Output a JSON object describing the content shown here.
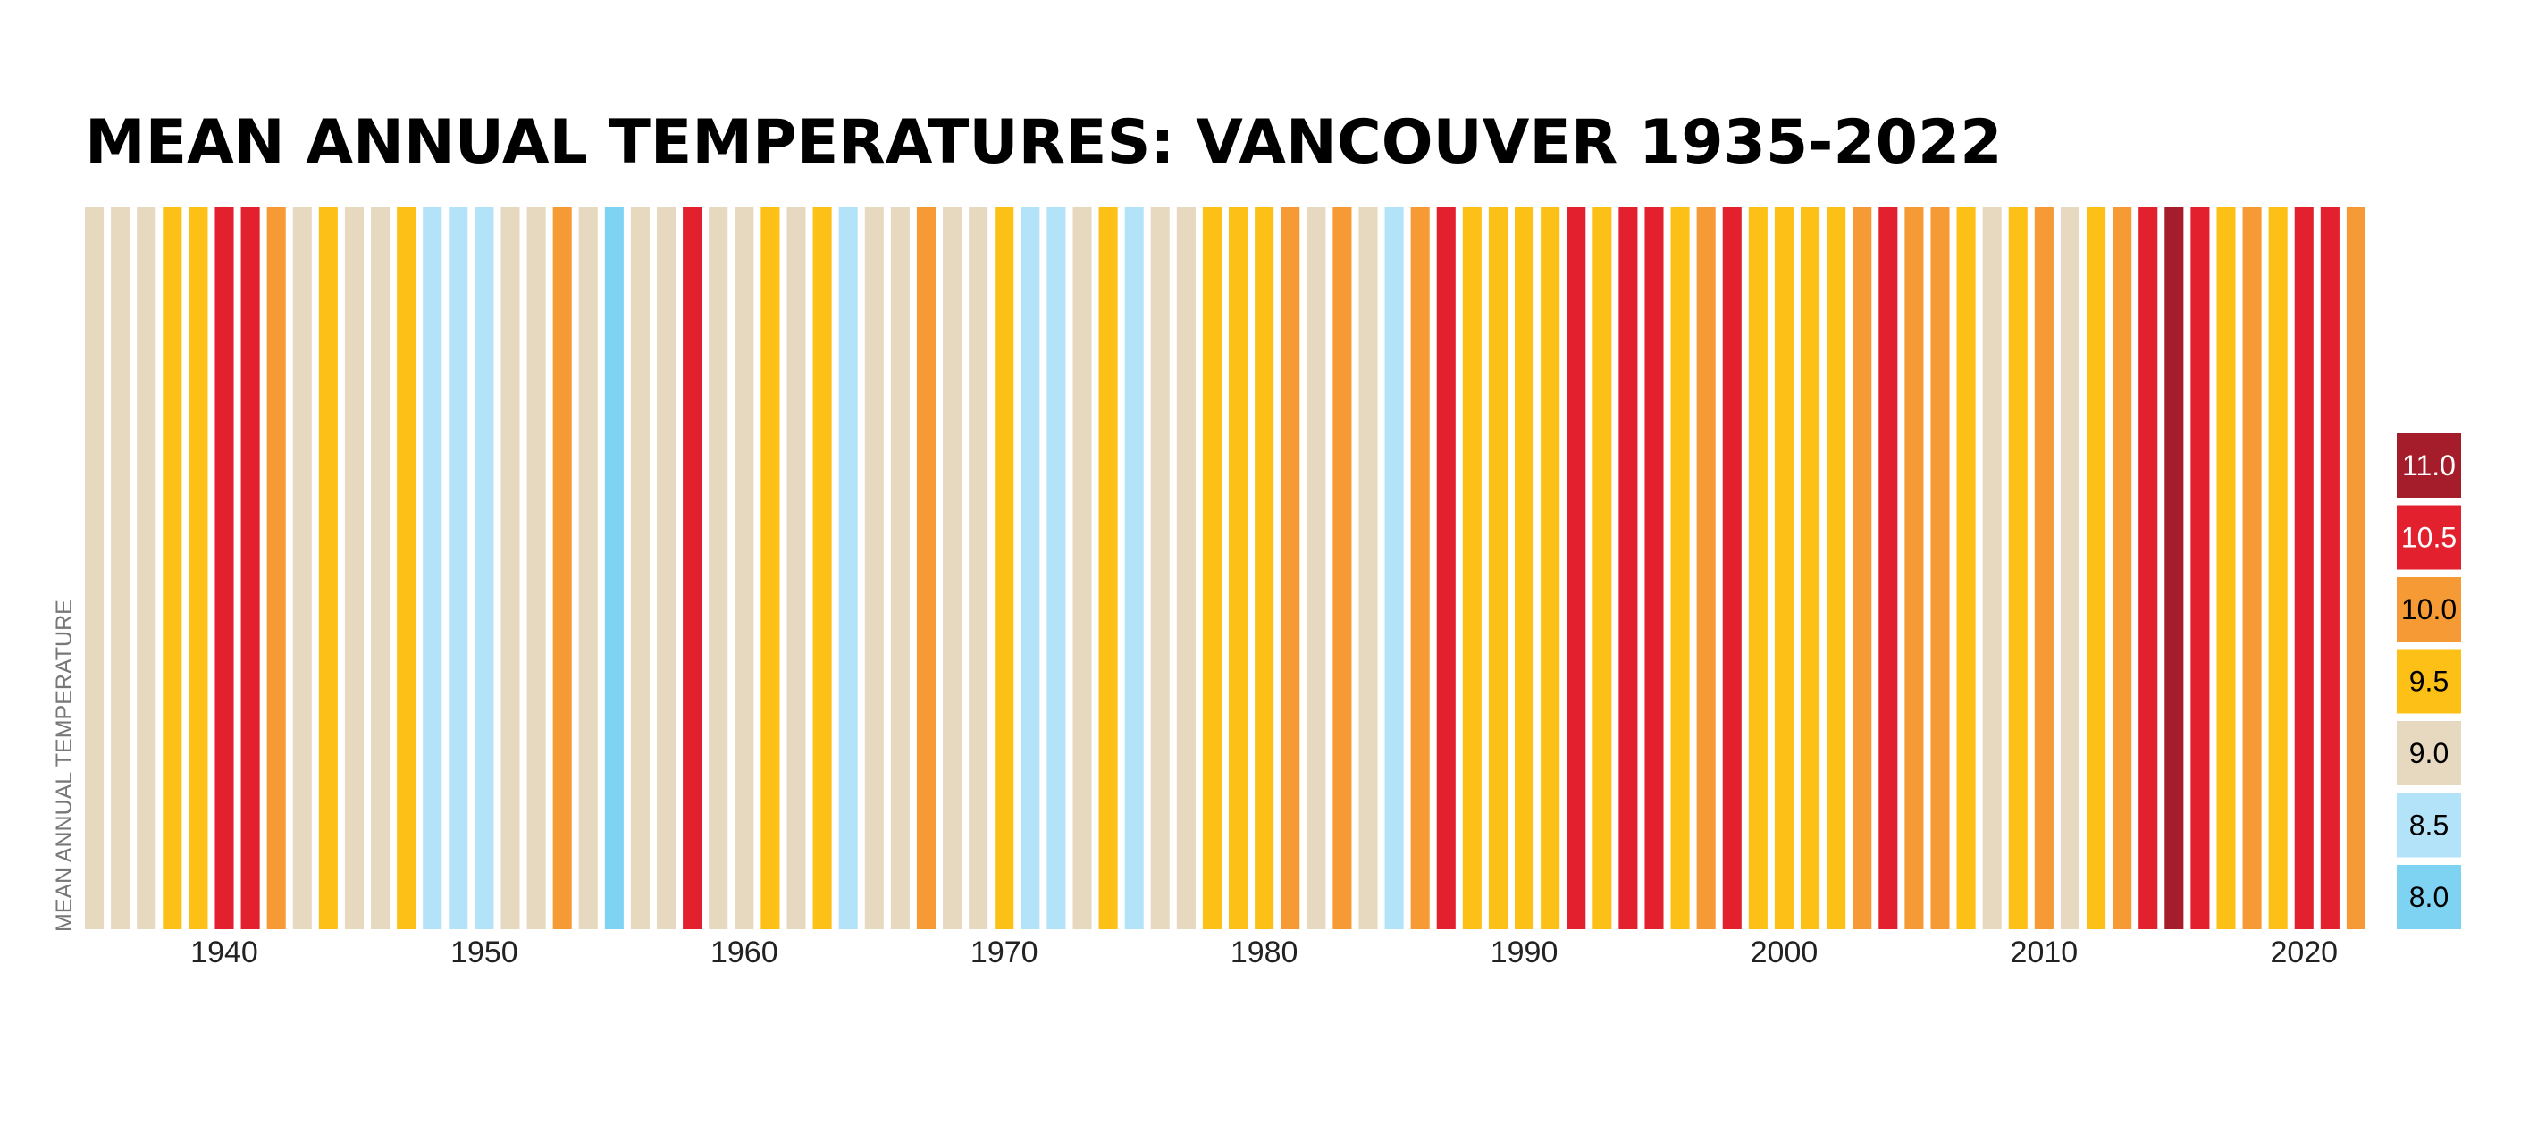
{
  "chart_data": {
    "type": "heatmap",
    "title": "MEAN ANNUAL TEMPERATURES: VANCOUVER 1935-2022",
    "ylabel": "MEAN ANNUAL TEMPERATURE",
    "xlabel": "",
    "x_start": 1935,
    "x_end": 2022,
    "x_ticks": [
      "1940",
      "1950",
      "1960",
      "1970",
      "1980",
      "1990",
      "2000",
      "2010",
      "2020"
    ],
    "legend": [
      {
        "label": "11.0",
        "value": 11.0,
        "color": "#a51c2a",
        "text_color": "#ffffff"
      },
      {
        "label": "10.5",
        "value": 10.5,
        "color": "#e2202e",
        "text_color": "#ffffff"
      },
      {
        "label": "10.0",
        "value": 10.0,
        "color": "#f59a35",
        "text_color": "#000000"
      },
      {
        "label": "9.5",
        "value": 9.5,
        "color": "#fdc017",
        "text_color": "#000000"
      },
      {
        "label": "9.0",
        "value": 9.0,
        "color": "#e7d9bf",
        "text_color": "#000000"
      },
      {
        "label": "8.5",
        "value": 8.5,
        "color": "#b3e3f8",
        "text_color": "#000000"
      },
      {
        "label": "8.0",
        "value": 8.0,
        "color": "#7fd3f2",
        "text_color": "#000000"
      }
    ],
    "years": [
      1935,
      1936,
      1937,
      1938,
      1939,
      1940,
      1941,
      1942,
      1943,
      1944,
      1945,
      1946,
      1947,
      1948,
      1949,
      1950,
      1951,
      1952,
      1953,
      1954,
      1955,
      1956,
      1957,
      1958,
      1959,
      1960,
      1961,
      1962,
      1963,
      1964,
      1965,
      1966,
      1967,
      1968,
      1969,
      1970,
      1971,
      1972,
      1973,
      1974,
      1975,
      1976,
      1977,
      1978,
      1979,
      1980,
      1981,
      1982,
      1983,
      1984,
      1985,
      1986,
      1987,
      1988,
      1989,
      1990,
      1991,
      1992,
      1993,
      1994,
      1995,
      1996,
      1997,
      1998,
      1999,
      2000,
      2001,
      2002,
      2003,
      2004,
      2005,
      2006,
      2007,
      2008,
      2009,
      2010,
      2011,
      2012,
      2013,
      2014,
      2015,
      2016,
      2017,
      2018,
      2019,
      2020,
      2021,
      2022
    ],
    "values": [
      9.0,
      9.0,
      9.0,
      9.5,
      9.5,
      10.5,
      10.5,
      10.0,
      9.0,
      9.5,
      9.0,
      9.0,
      9.5,
      8.5,
      8.5,
      8.5,
      9.0,
      9.0,
      10.0,
      9.0,
      8.0,
      9.0,
      9.0,
      10.5,
      9.0,
      9.0,
      9.5,
      9.0,
      9.5,
      8.5,
      9.0,
      9.0,
      10.0,
      9.0,
      9.0,
      9.5,
      8.5,
      8.5,
      9.0,
      9.5,
      8.5,
      9.0,
      9.0,
      9.5,
      9.5,
      9.5,
      10.0,
      9.0,
      10.0,
      9.0,
      8.5,
      10.0,
      10.5,
      9.5,
      9.5,
      9.5,
      9.5,
      10.5,
      9.5,
      10.5,
      10.5,
      9.5,
      10.0,
      10.5,
      9.5,
      9.5,
      9.5,
      9.5,
      10.0,
      10.5,
      10.0,
      10.0,
      9.5,
      9.0,
      9.5,
      10.0,
      9.0,
      9.5,
      10.0,
      10.5,
      11.0,
      10.5,
      9.5,
      10.0,
      9.5,
      10.5,
      10.5,
      10.0
    ]
  }
}
